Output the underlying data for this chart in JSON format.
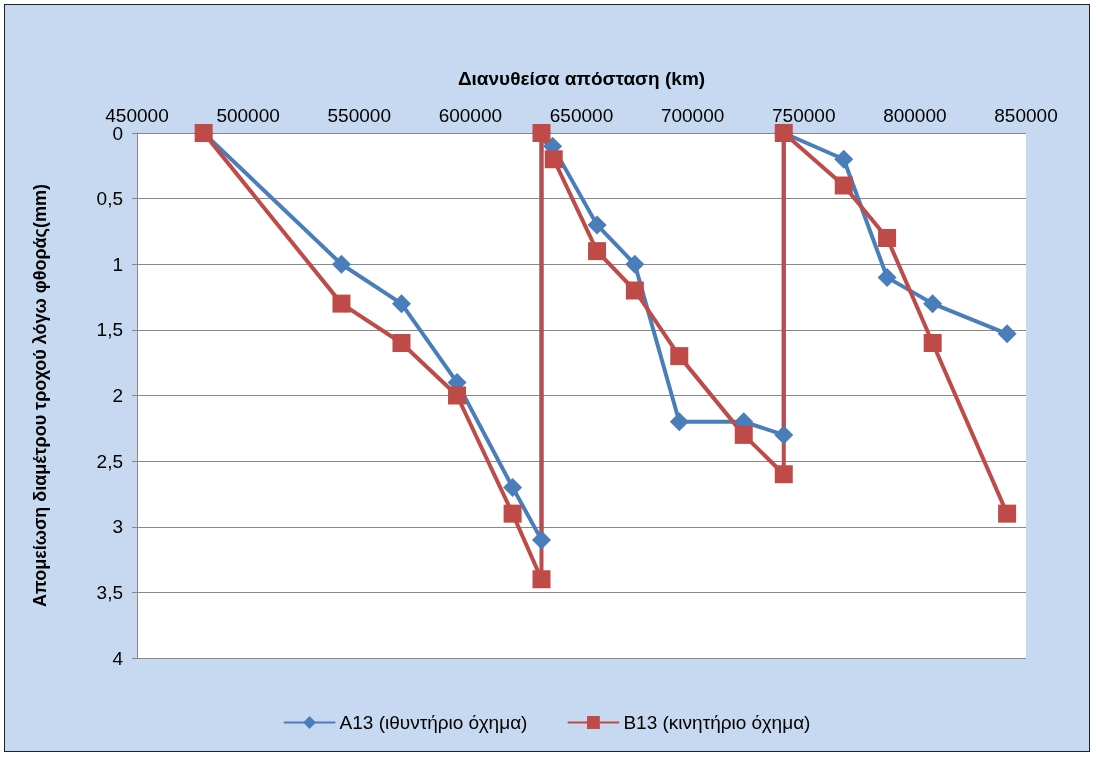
{
  "chart_data": {
    "type": "line",
    "xlabel": "Διανυθείσα απόσταση (km)",
    "ylabel": "Απομείωση διαμέτρου τροχού λόγω φθοράς(mm)",
    "xlim": [
      450000,
      850000
    ],
    "xticks": [
      450000,
      500000,
      550000,
      600000,
      650000,
      700000,
      750000,
      800000,
      850000
    ],
    "ylim": [
      4,
      0
    ],
    "yticks": [
      0,
      {
        "value": 0.5,
        "label": "0,5"
      },
      1,
      {
        "value": 1.5,
        "label": "1,5"
      },
      2,
      {
        "value": 2.5,
        "label": "2,5"
      },
      3,
      {
        "value": 3.5,
        "label": "3,5"
      },
      4
    ],
    "grid": "y",
    "legend": "bottom",
    "series": [
      {
        "name": "A13 (ιθυντήριο όχημα)",
        "color": "#4a7ebb",
        "marker": "diamond",
        "x": [
          480000,
          542000,
          569000,
          594000,
          619000,
          632000,
          632000,
          637000,
          657000,
          674000,
          694000,
          723000,
          741000,
          741000,
          768000,
          787500,
          808000,
          841500
        ],
        "values": [
          0,
          1.0,
          1.3,
          1.9,
          2.7,
          3.1,
          0,
          0.1,
          0.7,
          1.0,
          2.2,
          2.2,
          2.3,
          0,
          0.2,
          1.1,
          1.3,
          1.53
        ]
      },
      {
        "name": "B13 (κινητήριο όχημα)",
        "color": "#be4b48",
        "marker": "square",
        "x": [
          480000,
          542000,
          569000,
          594000,
          619000,
          632000,
          632000,
          637500,
          657000,
          674000,
          694000,
          723000,
          741000,
          741000,
          768000,
          787500,
          808000,
          841500
        ],
        "values": [
          0,
          1.3,
          1.6,
          2.0,
          2.9,
          3.4,
          0,
          0.2,
          0.9,
          1.2,
          1.7,
          2.3,
          2.6,
          0,
          0.4,
          0.8,
          1.6,
          2.9
        ]
      }
    ]
  }
}
